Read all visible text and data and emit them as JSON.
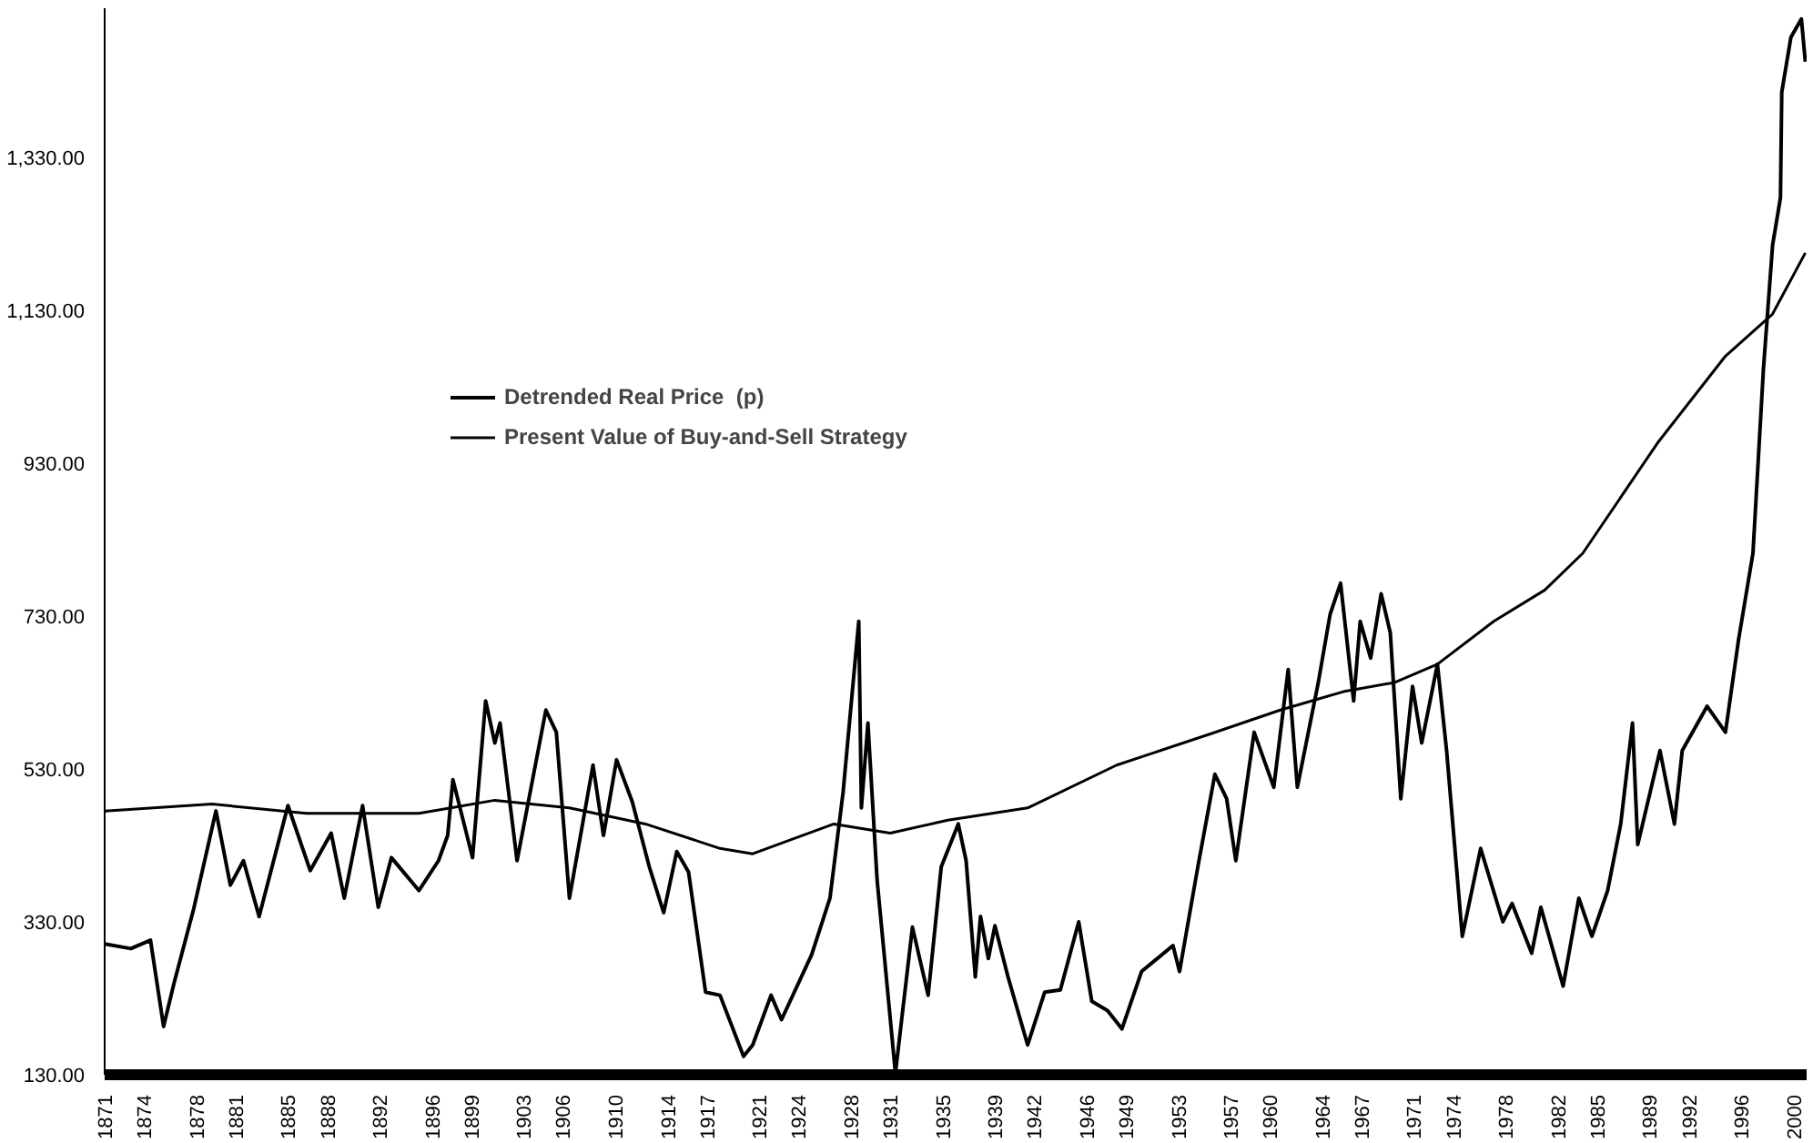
{
  "chart_data": {
    "type": "line",
    "xlim": [
      1871,
      2001
    ],
    "xticks": [
      1871,
      1874,
      1878,
      1881,
      1885,
      1888,
      1892,
      1896,
      1899,
      1903,
      1906,
      1910,
      1914,
      1917,
      1921,
      1924,
      1928,
      1931,
      1935,
      1939,
      1942,
      1946,
      1949,
      1953,
      1957,
      1960,
      1964,
      1967,
      1971,
      1974,
      1978,
      1982,
      1985,
      1989,
      1992,
      1996,
      2000
    ],
    "ylim": [
      130,
      1525
    ],
    "yticks": [
      {
        "value": 130,
        "label": "130.00"
      },
      {
        "value": 330,
        "label": "330.00"
      },
      {
        "value": 530,
        "label": "530.00"
      },
      {
        "value": 730,
        "label": "730.00"
      },
      {
        "value": 930,
        "label": "930.00"
      },
      {
        "value": 1130,
        "label": "1,130.00"
      },
      {
        "value": 1330,
        "label": "1,330.00"
      }
    ],
    "grid": false,
    "legend": "top left",
    "marker": "none",
    "line_style": "solid",
    "series": [
      {
        "name": "Detrended Real Price  (p)",
        "color": "#000000",
        "x": [
          1871,
          1873,
          1874.5,
          1875.5,
          1876.3,
          1877.8,
          1879.5,
          1880.6,
          1881.6,
          1882.8,
          1885.0,
          1886.7,
          1888.3,
          1889.3,
          1890.7,
          1891.9,
          1892.9,
          1895.0,
          1896.5,
          1897.2,
          1897.6,
          1899.1,
          1900.1,
          1900.8,
          1901.2,
          1902.5,
          1904.7,
          1905.5,
          1906.5,
          1908.3,
          1909.1,
          1910.1,
          1911.3,
          1912.6,
          1913.7,
          1914.7,
          1915.6,
          1916.9,
          1918.0,
          1919.8,
          1920.5,
          1921.9,
          1922.7,
          1925.0,
          1926.4,
          1927.4,
          1928.6,
          1928.8,
          1929.3,
          1930.0,
          1931.4,
          1932.7,
          1933.9,
          1934.9,
          1936.2,
          1936.8,
          1937.5,
          1937.9,
          1938.5,
          1939.0,
          1940.0,
          1941.5,
          1942.8,
          1944.0,
          1945.4,
          1946.4,
          1947.6,
          1948.7,
          1950.2,
          1952.6,
          1953.1,
          1954.5,
          1955.8,
          1956.7,
          1957.4,
          1958.8,
          1960.3,
          1961.4,
          1962.1,
          1963.7,
          1964.6,
          1965.4,
          1966.4,
          1966.9,
          1967.7,
          1968.5,
          1969.2,
          1970.0,
          1970.9,
          1971.6,
          1972.8,
          1973.5,
          1974.7,
          1976.1,
          1977.8,
          1978.5,
          1980.0,
          1980.7,
          1982.4,
          1983.6,
          1984.6,
          1985.8,
          1986.8,
          1987.7,
          1988.1,
          1989.8,
          1990.9,
          1991.5,
          1993.4,
          1994.8,
          1995.8,
          1996.9,
          1997.7,
          1998.4,
          1999.0,
          1999.1,
          1999.8,
          2000.6,
          2000.9
        ],
        "values": [
          301,
          295,
          306,
          193,
          250,
          347,
          475,
          378,
          410,
          337,
          482,
          397,
          446,
          361,
          482,
          349,
          414,
          371,
          410,
          443,
          516,
          414,
          619,
          564,
          590,
          410,
          607,
          578,
          361,
          535,
          443,
          542,
          487,
          402,
          342,
          422,
          395,
          238,
          234,
          154,
          169,
          234,
          202,
          287,
          361,
          499,
          723,
          479,
          590,
          385,
          132,
          323,
          234,
          402,
          458,
          410,
          258,
          337,
          282,
          325,
          258,
          169,
          238,
          241,
          330,
          226,
          214,
          190,
          265,
          299,
          265,
          402,
          523,
          491,
          410,
          578,
          506,
          660,
          506,
          643,
          732,
          773,
          619,
          723,
          675,
          759,
          708,
          491,
          638,
          564,
          667,
          554,
          311,
          426,
          330,
          354,
          289,
          349,
          246,
          361,
          311,
          371,
          458,
          590,
          431,
          554,
          458,
          554,
          612,
          578,
          699,
          812,
          1053,
          1215,
          1277,
          1415,
          1487,
          1511,
          1455
        ]
      },
      {
        "name": "Present Value of Buy-and-Sell Strategy",
        "color": "#000000",
        "x": [
          1871,
          1879.2,
          1886.4,
          1895,
          1900.8,
          1906.5,
          1912.3,
          1918,
          1920.5,
          1926.7,
          1931,
          1935.4,
          1941.5,
          1948.3,
          1955.5,
          1960.8,
          1965.6,
          1969.5,
          1972.8,
          1977.1,
          1981.0,
          1983.9,
          1989.6,
          1994.8,
          1998.4,
          2000.9
        ],
        "values": [
          475,
          484,
          472,
          472,
          489,
          479,
          458,
          426,
          419,
          458,
          446,
          463,
          479,
          535,
          576,
          607,
          631,
          643,
          667,
          723,
          764,
          812,
          956,
          1070,
          1125,
          1205
        ]
      }
    ]
  }
}
